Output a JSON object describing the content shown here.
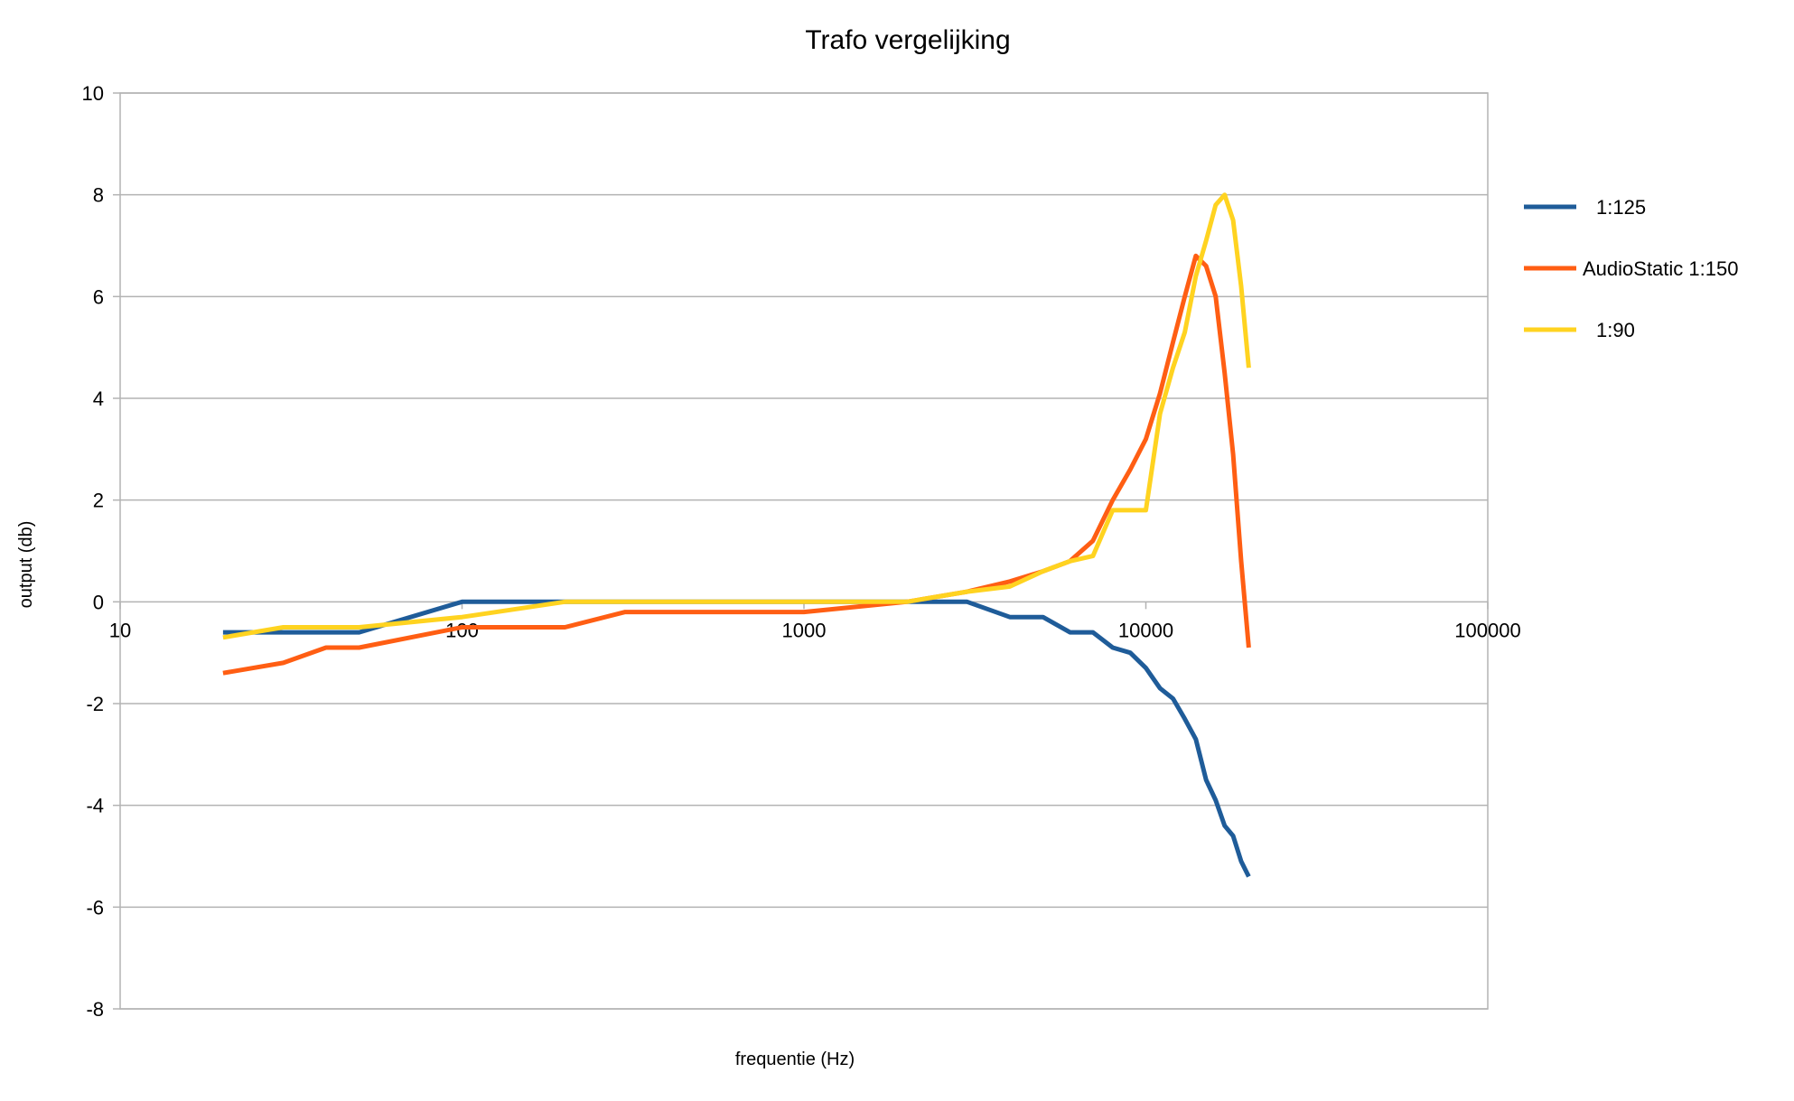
{
  "chart_data": {
    "type": "line",
    "title": "Trafo  vergelijking",
    "xlabel": "frequentie  (Hz)",
    "ylabel": "output  (db)",
    "x_scale": "log",
    "xlim": [
      10,
      100000
    ],
    "ylim": [
      -8,
      10
    ],
    "x_ticks": [
      10,
      100,
      1000,
      10000,
      100000
    ],
    "x_tick_labels": [
      "10",
      "100",
      "1000",
      "10000",
      "100000"
    ],
    "y_ticks": [
      -8,
      -6,
      -4,
      -2,
      0,
      2,
      4,
      6,
      8,
      10
    ],
    "y_tick_labels": [
      "-8",
      "-6",
      "-4",
      "-2",
      "0",
      "2",
      "4",
      "6",
      "8",
      "10"
    ],
    "grid": "horizontal",
    "legend_position": "right",
    "series": [
      {
        "name": "1:125",
        "color": "#1f5c99",
        "points": [
          [
            20,
            -0.6
          ],
          [
            30,
            -0.6
          ],
          [
            40,
            -0.6
          ],
          [
            50,
            -0.6
          ],
          [
            100,
            0
          ],
          [
            200,
            0
          ],
          [
            300,
            0
          ],
          [
            500,
            0
          ],
          [
            1000,
            0
          ],
          [
            2000,
            0
          ],
          [
            3000,
            0
          ],
          [
            4000,
            -0.3
          ],
          [
            5000,
            -0.3
          ],
          [
            6000,
            -0.6
          ],
          [
            7000,
            -0.6
          ],
          [
            8000,
            -0.9
          ],
          [
            9000,
            -1.0
          ],
          [
            10000,
            -1.3
          ],
          [
            11000,
            -1.7
          ],
          [
            12000,
            -1.9
          ],
          [
            13000,
            -2.3
          ],
          [
            14000,
            -2.7
          ],
          [
            15000,
            -3.5
          ],
          [
            16000,
            -3.9
          ],
          [
            17000,
            -4.4
          ],
          [
            18000,
            -4.6
          ],
          [
            19000,
            -5.1
          ],
          [
            20000,
            -5.4
          ]
        ]
      },
      {
        "name": "AudioStatic 1:150",
        "color": "#ff5e13",
        "points": [
          [
            20,
            -1.4
          ],
          [
            30,
            -1.2
          ],
          [
            40,
            -0.9
          ],
          [
            50,
            -0.9
          ],
          [
            100,
            -0.5
          ],
          [
            200,
            -0.5
          ],
          [
            300,
            -0.2
          ],
          [
            500,
            -0.2
          ],
          [
            1000,
            -0.2
          ],
          [
            2000,
            0
          ],
          [
            3000,
            0.2
          ],
          [
            4000,
            0.4
          ],
          [
            5000,
            0.6
          ],
          [
            6000,
            0.8
          ],
          [
            7000,
            1.2
          ],
          [
            8000,
            2.0
          ],
          [
            9000,
            2.6
          ],
          [
            10000,
            3.2
          ],
          [
            11000,
            4.1
          ],
          [
            12000,
            5.1
          ],
          [
            13000,
            6.0
          ],
          [
            14000,
            6.8
          ],
          [
            15000,
            6.6
          ],
          [
            16000,
            6.0
          ],
          [
            17000,
            4.5
          ],
          [
            18000,
            2.9
          ],
          [
            19000,
            0.8
          ],
          [
            20000,
            -0.9
          ]
        ]
      },
      {
        "name": "1:90",
        "color": "#ffd320",
        "points": [
          [
            20,
            -0.7
          ],
          [
            30,
            -0.5
          ],
          [
            40,
            -0.5
          ],
          [
            50,
            -0.5
          ],
          [
            100,
            -0.3
          ],
          [
            200,
            0
          ],
          [
            300,
            0
          ],
          [
            500,
            0
          ],
          [
            1000,
            0
          ],
          [
            2000,
            0
          ],
          [
            3000,
            0.2
          ],
          [
            4000,
            0.3
          ],
          [
            5000,
            0.6
          ],
          [
            6000,
            0.8
          ],
          [
            7000,
            0.9
          ],
          [
            8000,
            1.8
          ],
          [
            9000,
            1.8
          ],
          [
            10000,
            1.8
          ],
          [
            11000,
            3.7
          ],
          [
            12000,
            4.6
          ],
          [
            13000,
            5.3
          ],
          [
            14000,
            6.4
          ],
          [
            15000,
            7.1
          ],
          [
            16000,
            7.8
          ],
          [
            17000,
            8.0
          ],
          [
            18000,
            7.5
          ],
          [
            19000,
            6.2
          ],
          [
            20000,
            4.6
          ]
        ]
      }
    ]
  }
}
